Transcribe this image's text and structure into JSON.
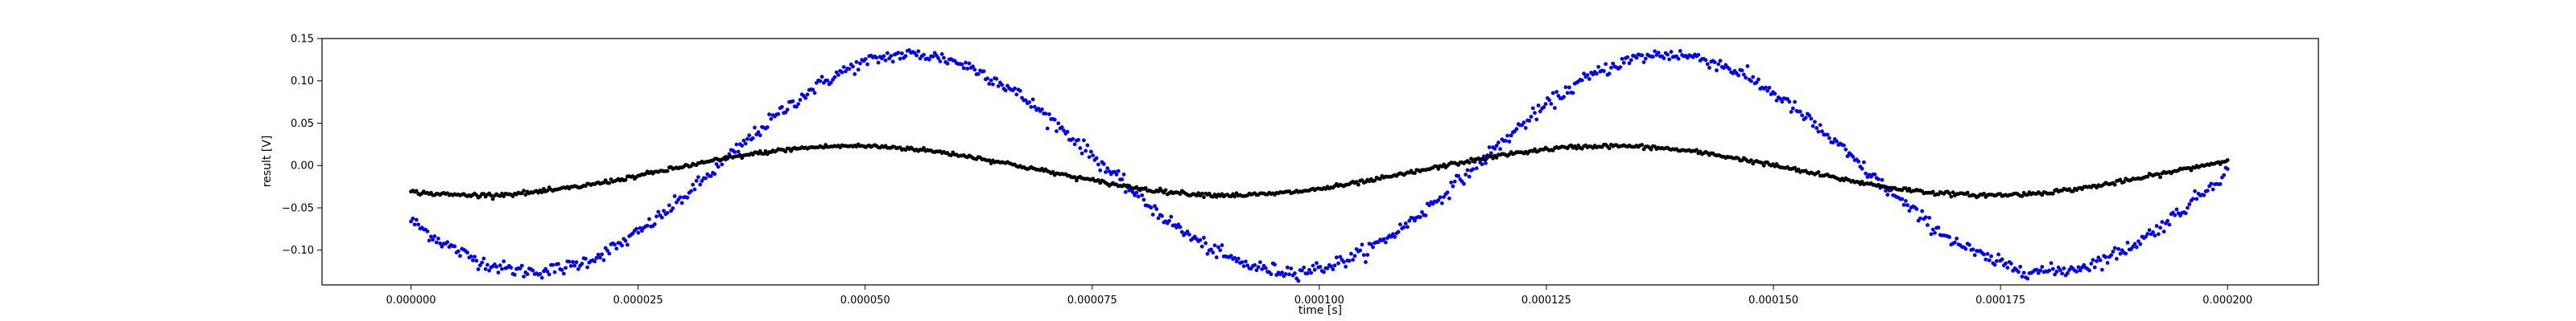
{
  "chart_data": {
    "type": "scatter",
    "xlabel": "time [s]",
    "ylabel": "result [V]",
    "xlim": [
      -9.8e-06,
      0.00021
    ],
    "ylim": [
      -0.141,
      0.15
    ],
    "xticks": [
      0,
      2.5e-05,
      5e-05,
      7.5e-05,
      0.0001,
      0.000125,
      0.00015,
      0.000175,
      0.0002
    ],
    "xtick_labels": [
      "0.000000",
      "0.000025",
      "0.000050",
      "0.000075",
      "0.000100",
      "0.000125",
      "0.000150",
      "0.000175",
      "0.000200"
    ],
    "yticks": [
      0.15,
      0.1,
      0.05,
      0.0,
      -0.05,
      -0.1
    ],
    "ytick_labels": [
      "0.15",
      "0.10",
      "0.05",
      "0.00",
      "−0.05",
      "−0.10"
    ],
    "grid": false,
    "x_range": [
      0,
      0.0002
    ],
    "points_per_series": 1000,
    "series": [
      {
        "color": "#0000ff",
        "marker": "point",
        "sine": {
          "amplitude": 0.128,
          "offset": 0.003,
          "frequency_hz": 12000,
          "phase_rad": 3.7,
          "noise": 0.004
        }
      },
      {
        "color": "#000000",
        "marker": "point",
        "sine": {
          "amplitude": 0.029,
          "offset": -0.006,
          "frequency_hz": 12000,
          "phase_rad": -2.1,
          "noise": 0.0012
        }
      }
    ]
  }
}
